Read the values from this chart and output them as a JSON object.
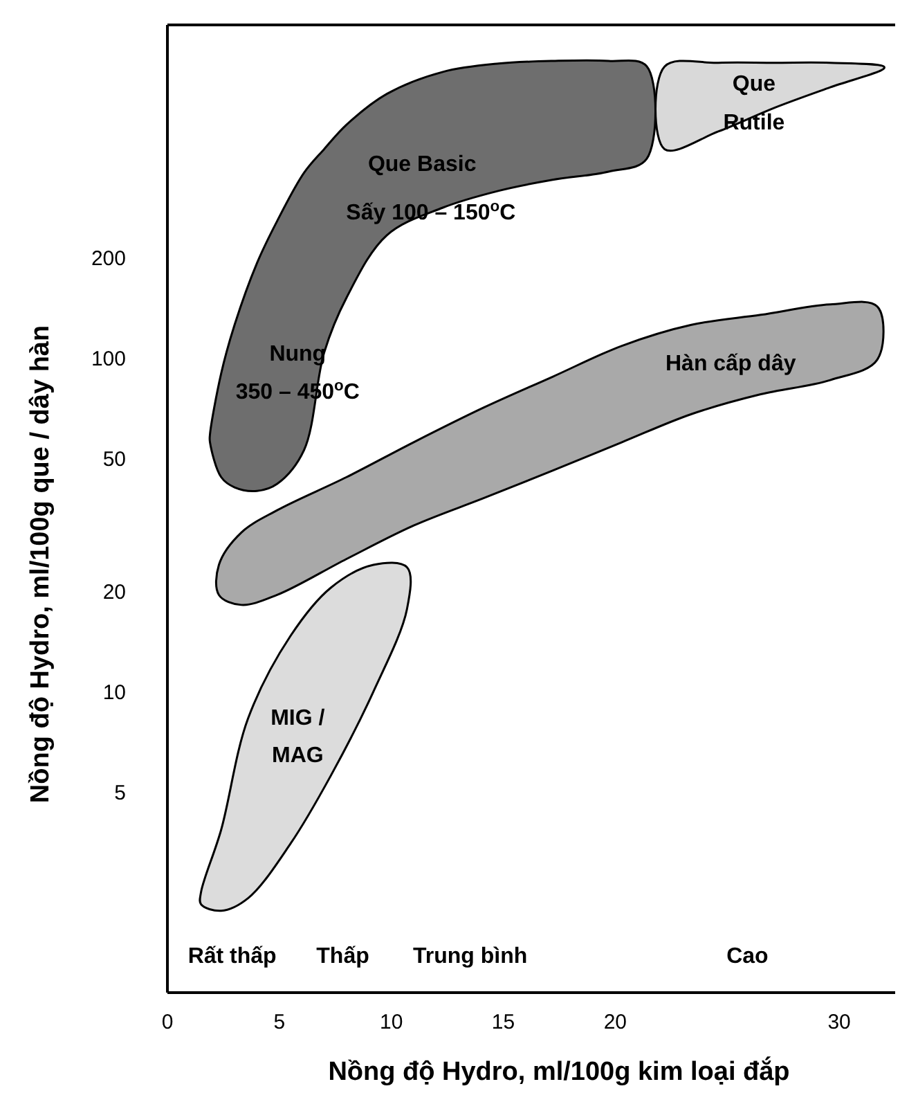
{
  "chart_data": {
    "type": "area",
    "xlabel": "Nồng độ Hydro, ml/100g kim loại đắp",
    "ylabel": "Nồng độ Hydro, ml/100g que / dây hàn",
    "log": "y",
    "grid": false,
    "xlim": [
      0,
      32.5
    ],
    "ylim": [
      1.25,
      1000
    ],
    "xticks": [
      0,
      5,
      10,
      15,
      20,
      30
    ],
    "yticks": [
      5,
      10,
      20,
      50,
      100,
      200
    ],
    "series": [
      {
        "color": "#a9a9a9",
        "x": [
          2.3,
          3.3,
          4.9,
          8.0,
          11.0,
          14.1,
          17.2,
          20.3,
          23.4,
          26.5,
          29.6,
          31.7,
          31.7,
          29.6,
          26.5,
          23.4,
          20.3,
          17.2,
          14.1,
          11.0,
          8.0,
          4.9,
          3.3,
          2.3
        ],
        "values": [
          24,
          30,
          35,
          44,
          56,
          71,
          88,
          109,
          126,
          135,
          145,
          143,
          99,
          86,
          78,
          68,
          56,
          46,
          38,
          31.5,
          25,
          19.5,
          18.2,
          19.5
        ]
      },
      {
        "color": "#dcdcdc",
        "x": [
          1.5,
          2.4,
          3.6,
          5.5,
          7.3,
          9.2,
          10.7,
          10.7,
          9.2,
          7.3,
          5.5,
          3.6,
          2.4,
          1.5
        ],
        "values": [
          2.5,
          3.85,
          8.3,
          14.7,
          20.5,
          24,
          23.6,
          17.7,
          10,
          5.6,
          3.5,
          2.4,
          2.2,
          2.3
        ]
      },
      {
        "color": "#d9d9d9",
        "x": [
          22.2,
          24.6,
          27.1,
          29.6,
          32.0,
          32.0,
          29.6,
          27.1,
          24.6,
          22.2
        ],
        "values": [
          750,
          770,
          770,
          770,
          750,
          740,
          650,
          564,
          479,
          424
        ]
      },
      {
        "color": "#6e6e6e",
        "x": [
          1.9,
          2.4,
          3.0,
          4.0,
          4.9,
          6.1,
          7.0,
          8.0,
          9.8,
          12.3,
          14.8,
          17.2,
          19.7,
          21.4,
          21.4,
          19.7,
          17.2,
          14.8,
          12.3,
          9.8,
          8.0,
          7.0,
          6.1,
          4.9,
          4.0,
          3.0,
          2.4,
          1.9
        ],
        "values": [
          59,
          90,
          126,
          193,
          258,
          360,
          424,
          502,
          621,
          723,
          766,
          780,
          780,
          752,
          396,
          363,
          343,
          318,
          283,
          234,
          152,
          104,
          53,
          42,
          40,
          41,
          44,
          56
        ]
      }
    ],
    "annotations": [
      "Que Basic",
      "Sấy 100 – 150$^{o}$C",
      "Nung",
      "350 – 450$^{o}$C",
      "Que",
      "Rutile",
      "Hàn cấp dây",
      "MIG /",
      "MAG",
      "Rất thấp",
      "Thấp",
      "Trung bình",
      "Cao"
    ]
  }
}
